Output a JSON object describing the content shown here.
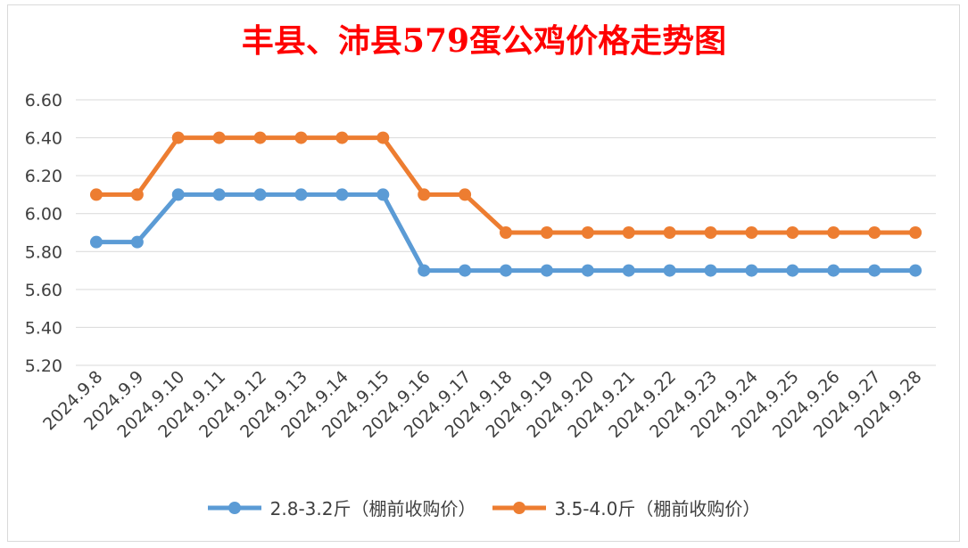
{
  "chart_data": {
    "type": "line",
    "title": "丰县、沛县579蛋公鸡价格走势图",
    "categories": [
      "2024.9.8",
      "2024.9.9",
      "2024.9.10",
      "2024.9.11",
      "2024.9.12",
      "2024.9.13",
      "2024.9.14",
      "2024.9.15",
      "2024.9.16",
      "2024.9.17",
      "2024.9.18",
      "2024.9.19",
      "2024.9.20",
      "2024.9.21",
      "2024.9.22",
      "2024.9.23",
      "2024.9.24",
      "2024.9.25",
      "2024.9.26",
      "2024.9.27",
      "2024.9.28"
    ],
    "series": [
      {
        "name": "2.8-3.2斤（棚前收购价）",
        "color": "#5b9bd5",
        "values": [
          5.85,
          5.85,
          6.1,
          6.1,
          6.1,
          6.1,
          6.1,
          6.1,
          5.7,
          5.7,
          5.7,
          5.7,
          5.7,
          5.7,
          5.7,
          5.7,
          5.7,
          5.7,
          5.7,
          5.7,
          5.7
        ]
      },
      {
        "name": "3.5-4.0斤（棚前收购价）",
        "color": "#ed7d31",
        "values": [
          6.1,
          6.1,
          6.4,
          6.4,
          6.4,
          6.4,
          6.4,
          6.4,
          6.1,
          6.1,
          5.9,
          5.9,
          5.9,
          5.9,
          5.9,
          5.9,
          5.9,
          5.9,
          5.9,
          5.9,
          5.9
        ]
      }
    ],
    "y_ticks": [
      "5.20",
      "5.40",
      "5.60",
      "5.80",
      "6.00",
      "6.20",
      "6.40",
      "6.60"
    ],
    "ylim": [
      5.2,
      6.6
    ],
    "grid": true,
    "legend_position": "bottom",
    "gridline_color": "#d9d9d9"
  }
}
